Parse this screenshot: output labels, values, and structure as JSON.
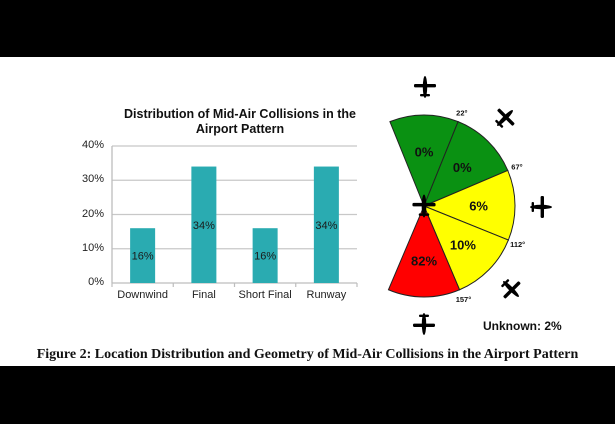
{
  "caption": "Figure 2: Location Distribution and Geometry of Mid-Air Collisions in the Airport Pattern",
  "chart_data": [
    {
      "type": "bar",
      "title": "Distribution of Mid-Air Collisions in the Airport Pattern",
      "title_lines": [
        "Distribution of Mid-Air Collisions in the",
        "Airport Pattern"
      ],
      "categories": [
        "Downwind",
        "Final",
        "Short Final",
        "Runway"
      ],
      "values": [
        16,
        34,
        16,
        34
      ],
      "data_labels": [
        "16%",
        "34%",
        "16%",
        "34%"
      ],
      "xlabel": "",
      "ylabel": "",
      "ylim": [
        0,
        40
      ],
      "yticks": [
        "0%",
        "10%",
        "20%",
        "30%",
        "40%"
      ],
      "grid": true,
      "bar_color": "#2AABB1",
      "legend": null
    },
    {
      "type": "pie",
      "subtype": "polar-sector-diagram",
      "sectors": [
        {
          "from_deg": -22,
          "to_deg": 22,
          "value": 0,
          "label": "0%",
          "color": "#0A9112"
        },
        {
          "from_deg": 22,
          "to_deg": 67,
          "value": 0,
          "label": "0%",
          "color": "#0A9112"
        },
        {
          "from_deg": 67,
          "to_deg": 112,
          "value": 6,
          "label": "6%",
          "color": "#FFFF00"
        },
        {
          "from_deg": 112,
          "to_deg": 157,
          "value": 10,
          "label": "10%",
          "color": "#FFFF00"
        },
        {
          "from_deg": 157,
          "to_deg": 203,
          "value": 82,
          "label": "82%",
          "color": "#FF0000"
        }
      ],
      "angle_labels": [
        "22°",
        "67°",
        "112°",
        "157°"
      ],
      "annotation": "Unknown: 2%"
    }
  ]
}
